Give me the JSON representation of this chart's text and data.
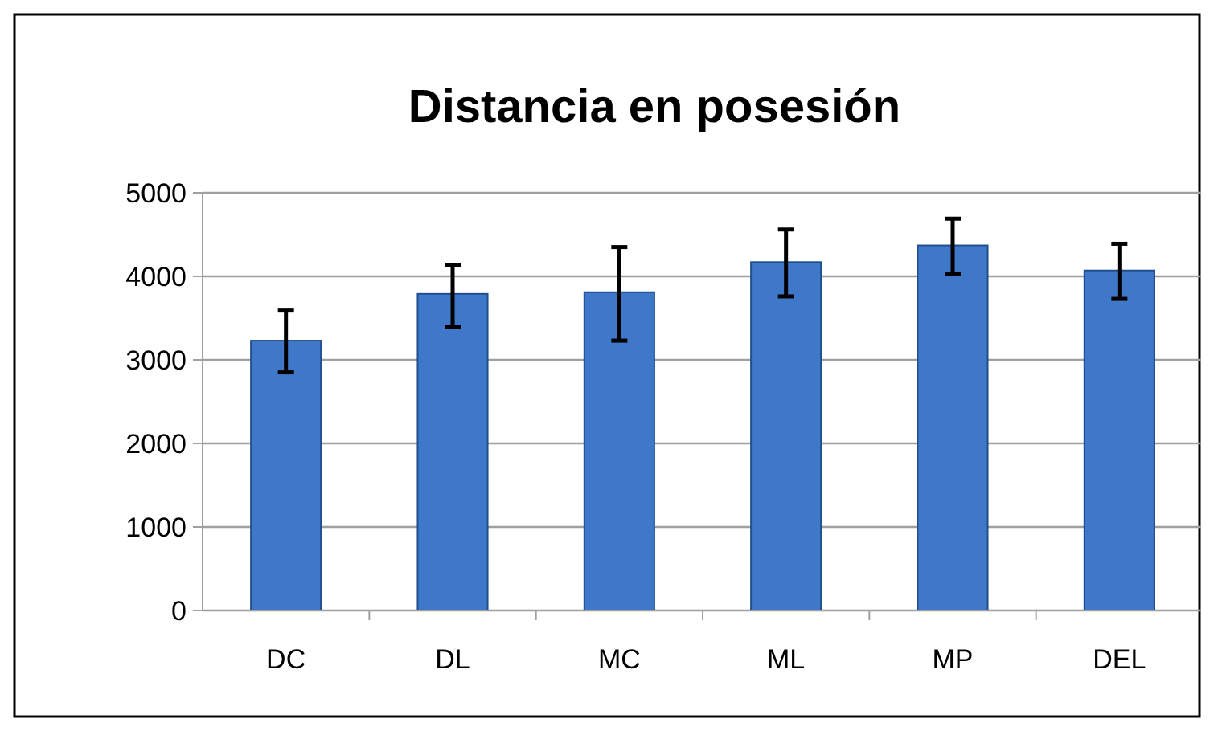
{
  "chart_data": {
    "type": "bar",
    "title": "Distancia en posesión",
    "categories": [
      "DC",
      "DL",
      "MC",
      "ML",
      "MP",
      "DEL"
    ],
    "values": [
      3230,
      3790,
      3810,
      4170,
      4370,
      4070
    ],
    "errors": [
      [
        2850,
        3590
      ],
      [
        3390,
        4130
      ],
      [
        3230,
        4350
      ],
      [
        3760,
        4560
      ],
      [
        4030,
        4690
      ],
      [
        3730,
        4390
      ]
    ],
    "color": "#3f78c8",
    "ylim": [
      0,
      5000
    ],
    "yticks": [
      0,
      1000,
      2000,
      3000,
      4000,
      5000
    ],
    "grid": "y"
  }
}
